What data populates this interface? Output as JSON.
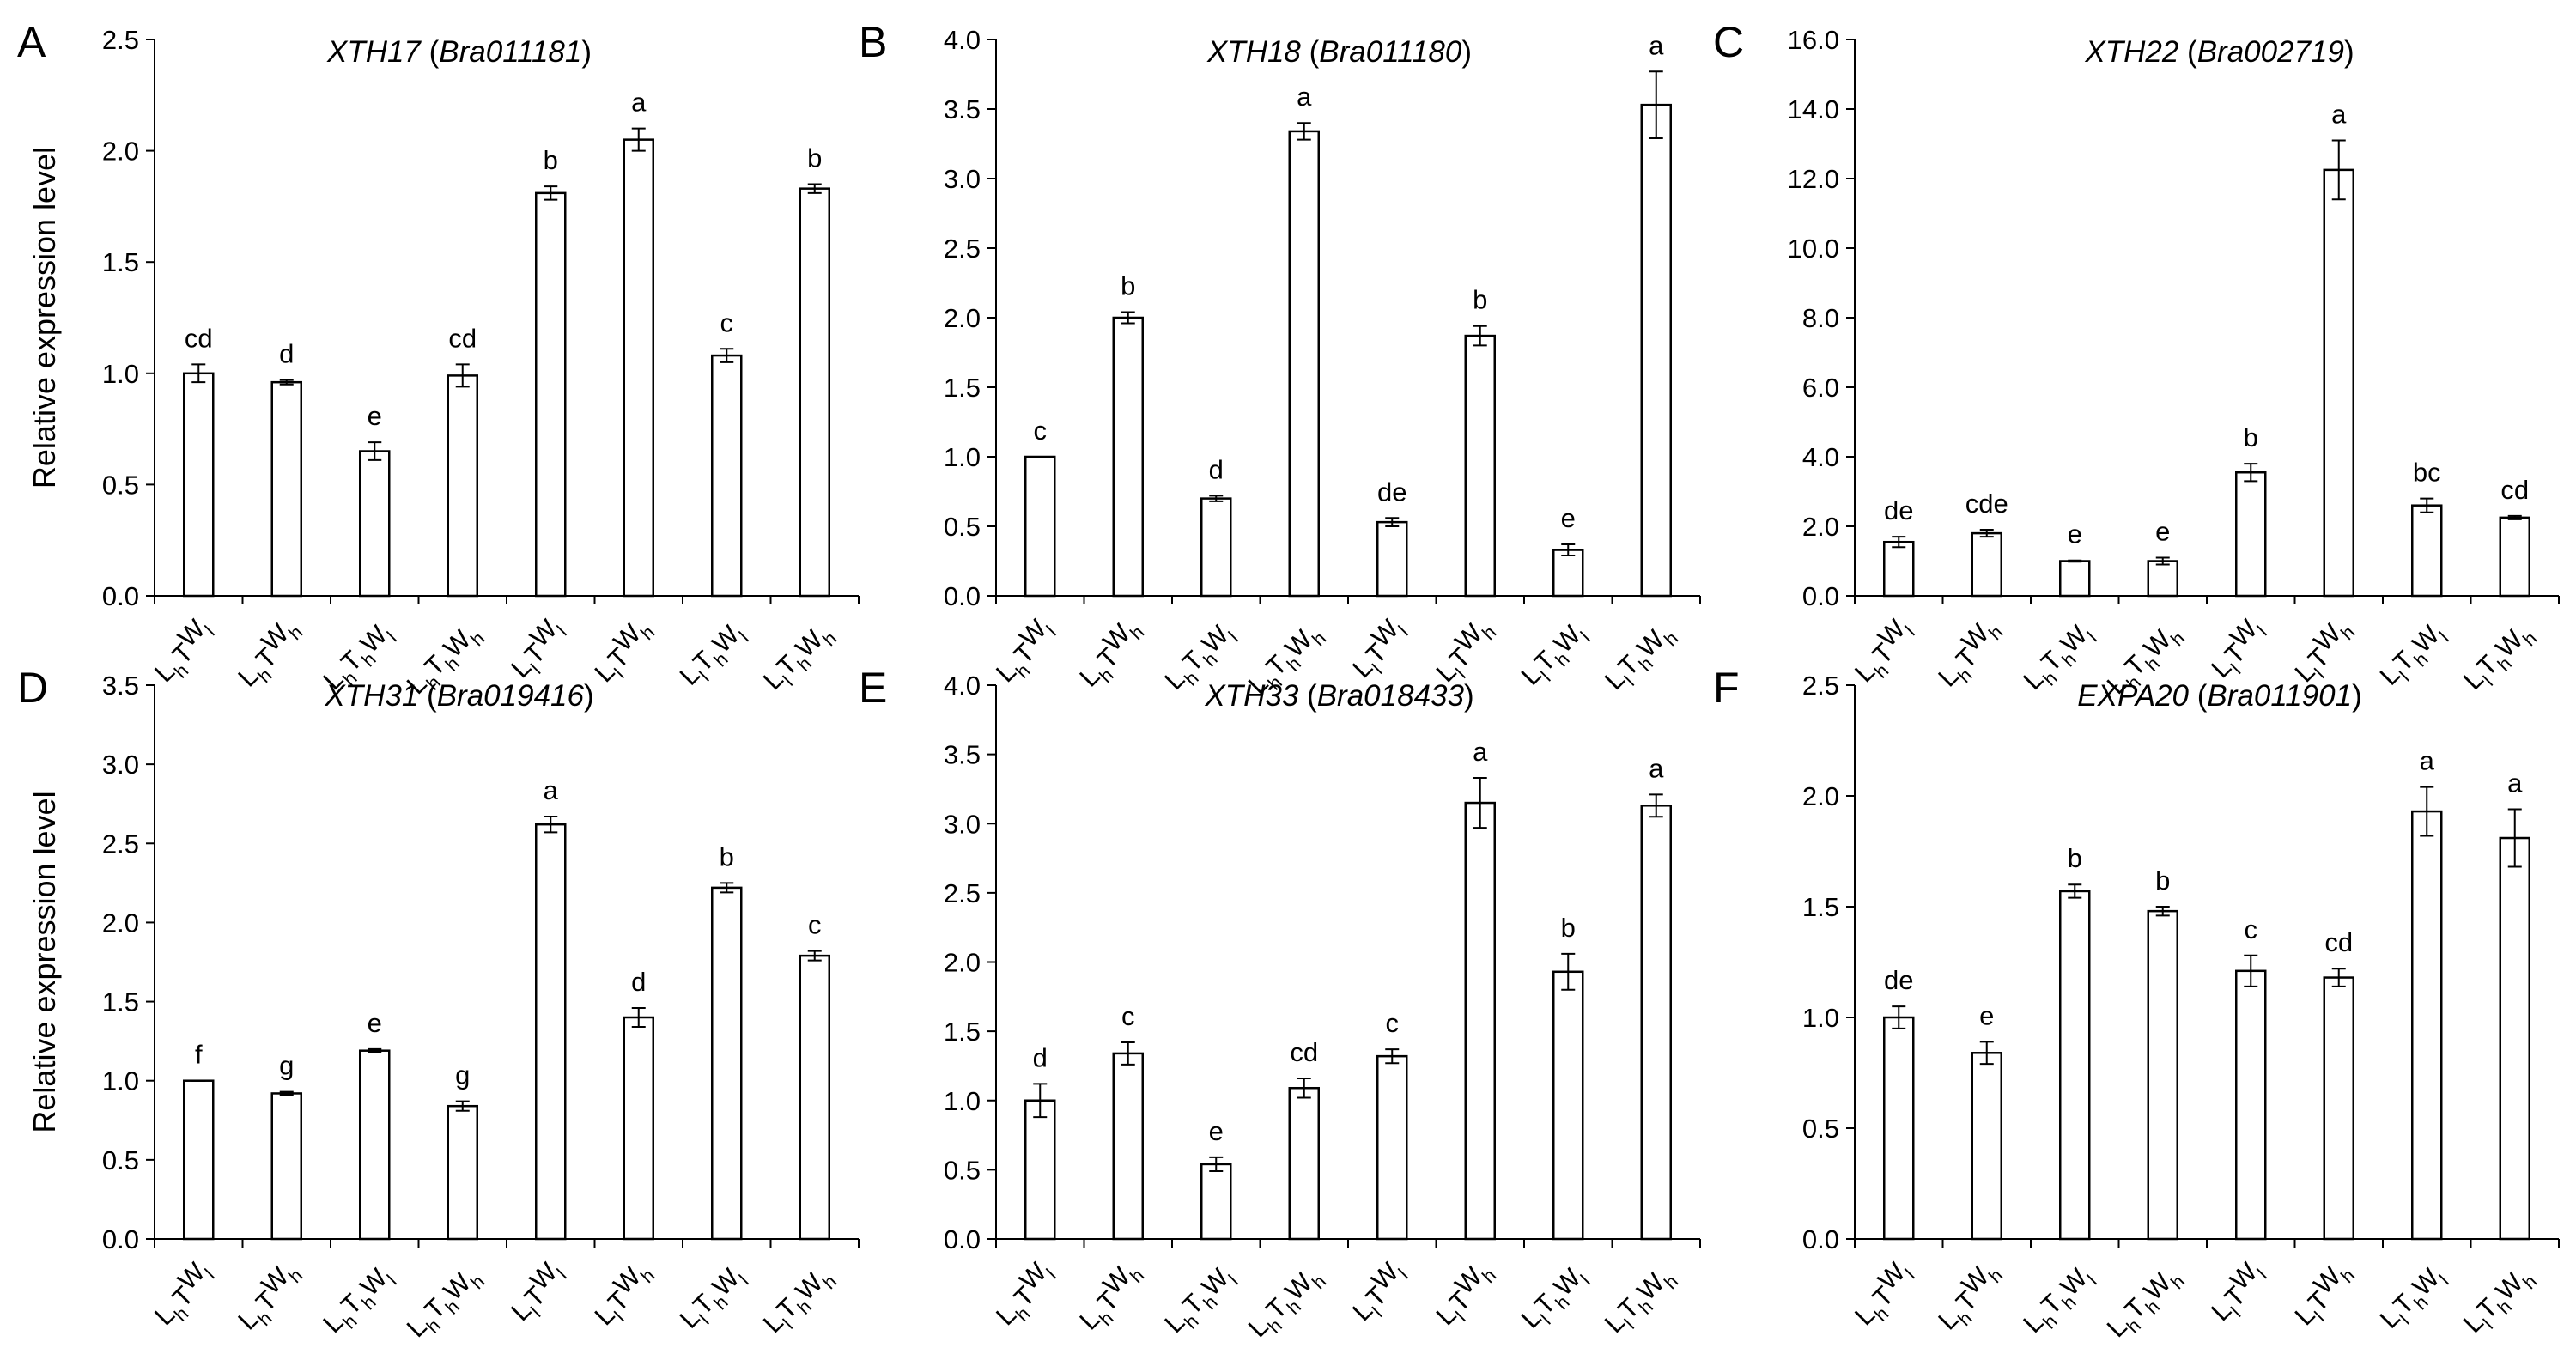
{
  "chart_data": [
    {
      "panel": "A",
      "type": "bar",
      "title": {
        "gene": "XTH17",
        "id": "Bra011181"
      },
      "ylabel": "Relative expression level",
      "ylim": [
        0,
        2.5
      ],
      "yticks": [
        "0.0",
        "0.5",
        "1.0",
        "1.5",
        "2.0",
        "2.5"
      ],
      "categories": [
        "LhTWl",
        "LhTWh",
        "LhThWl",
        "LhThWh",
        "LlTWl",
        "LlTWh",
        "LlThWl",
        "LlThWh"
      ],
      "values": [
        1.0,
        0.96,
        0.65,
        0.99,
        1.81,
        2.05,
        1.08,
        1.83
      ],
      "errors": [
        0.04,
        0.01,
        0.04,
        0.05,
        0.03,
        0.05,
        0.03,
        0.02
      ],
      "letters": [
        "cd",
        "d",
        "e",
        "cd",
        "b",
        "a",
        "c",
        "b"
      ]
    },
    {
      "panel": "B",
      "type": "bar",
      "title": {
        "gene": "XTH18",
        "id": "Bra011180"
      },
      "ylabel": "",
      "ylim": [
        0,
        4.0
      ],
      "yticks": [
        "0.0",
        "0.5",
        "1.0",
        "1.5",
        "2.0",
        "2.5",
        "3.0",
        "3.5",
        "4.0"
      ],
      "categories": [
        "LhTWl",
        "LhTWh",
        "LhThWl",
        "LhThWh",
        "LlTWl",
        "LlTWh",
        "LlThWl",
        "LlThWh"
      ],
      "values": [
        1.0,
        2.0,
        0.7,
        3.34,
        0.53,
        1.87,
        0.33,
        3.53
      ],
      "errors": [
        0.0,
        0.04,
        0.02,
        0.06,
        0.03,
        0.07,
        0.04,
        0.24
      ],
      "letters": [
        "c",
        "b",
        "d",
        "a",
        "de",
        "b",
        "e",
        "a"
      ]
    },
    {
      "panel": "C",
      "type": "bar",
      "title": {
        "gene": "XTH22",
        "id": "Bra002719"
      },
      "ylabel": "",
      "ylim": [
        0,
        16.0
      ],
      "yticks": [
        "0.0",
        "2.0",
        "4.0",
        "6.0",
        "8.0",
        "10.0",
        "12.0",
        "14.0",
        "16.0"
      ],
      "categories": [
        "LhTWl",
        "LhTWh",
        "LhThWl",
        "LhThWh",
        "LlTWl",
        "LlTWh",
        "LlThWl",
        "LlThWh"
      ],
      "values": [
        1.55,
        1.8,
        1.0,
        1.0,
        3.55,
        12.25,
        2.6,
        2.25
      ],
      "errors": [
        0.15,
        0.1,
        0.02,
        0.1,
        0.25,
        0.85,
        0.2,
        0.05
      ],
      "letters": [
        "de",
        "cde",
        "e",
        "e",
        "b",
        "a",
        "bc",
        "cd"
      ]
    },
    {
      "panel": "D",
      "type": "bar",
      "title": {
        "gene": "XTH31",
        "id": "Bra019416"
      },
      "ylabel": "Relative expression level",
      "ylim": [
        0,
        3.5
      ],
      "yticks": [
        "0.0",
        "0.5",
        "1.0",
        "1.5",
        "2.0",
        "2.5",
        "3.0",
        "3.5"
      ],
      "categories": [
        "LhTWl",
        "LhTWh",
        "LhThWl",
        "LhThWh",
        "LlTWl",
        "LlTWh",
        "LlThWl",
        "LlThWh"
      ],
      "values": [
        1.0,
        0.92,
        1.19,
        0.84,
        2.62,
        1.4,
        2.22,
        1.79
      ],
      "errors": [
        0.0,
        0.01,
        0.01,
        0.03,
        0.05,
        0.06,
        0.03,
        0.03
      ],
      "letters": [
        "f",
        "g",
        "e",
        "g",
        "a",
        "d",
        "b",
        "c"
      ]
    },
    {
      "panel": "E",
      "type": "bar",
      "title": {
        "gene": "XTH33",
        "id": "Bra018433"
      },
      "ylabel": "",
      "ylim": [
        0,
        4.0
      ],
      "yticks": [
        "0.0",
        "0.5",
        "1.0",
        "1.5",
        "2.0",
        "2.5",
        "3.0",
        "3.5",
        "4.0"
      ],
      "categories": [
        "LhTWl",
        "LhTWh",
        "LhThWl",
        "LhThWh",
        "LlTWl",
        "LlTWh",
        "LlThWl",
        "LlThWh"
      ],
      "values": [
        1.0,
        1.34,
        0.54,
        1.09,
        1.32,
        3.15,
        1.93,
        3.13
      ],
      "errors": [
        0.12,
        0.08,
        0.05,
        0.07,
        0.05,
        0.18,
        0.13,
        0.08
      ],
      "letters": [
        "d",
        "c",
        "e",
        "cd",
        "c",
        "a",
        "b",
        "a"
      ]
    },
    {
      "panel": "F",
      "type": "bar",
      "title": {
        "gene": "EXPA20",
        "id": "Bra011901"
      },
      "ylabel": "",
      "ylim": [
        0,
        2.5
      ],
      "yticks": [
        "0.0",
        "0.5",
        "1.0",
        "1.5",
        "2.0",
        "2.5"
      ],
      "categories": [
        "LhTWl",
        "LhTWh",
        "LhThWl",
        "LhThWh",
        "LlTWl",
        "LlTWh",
        "LlThWl",
        "LlThWh"
      ],
      "values": [
        1.0,
        0.84,
        1.57,
        1.48,
        1.21,
        1.18,
        1.93,
        1.81
      ],
      "errors": [
        0.05,
        0.05,
        0.03,
        0.02,
        0.07,
        0.04,
        0.11,
        0.13
      ],
      "letters": [
        "de",
        "e",
        "b",
        "b",
        "c",
        "cd",
        "a",
        "a"
      ]
    }
  ]
}
